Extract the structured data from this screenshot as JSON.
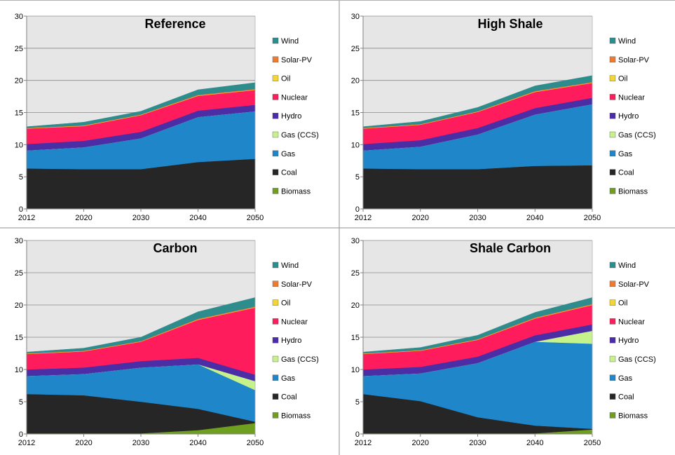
{
  "chart_data": [
    {
      "type": "area",
      "title": "Reference",
      "x": [
        "2012",
        "2020",
        "2030",
        "2040",
        "2050"
      ],
      "ylim": [
        0,
        30
      ],
      "yticks": [
        0,
        5,
        10,
        15,
        20,
        25,
        30
      ],
      "grid": true,
      "legend": "right",
      "stacked": true,
      "series": [
        {
          "name": "Biomass",
          "color": "#6E9F1E",
          "values": [
            0.1,
            0.1,
            0.1,
            0.1,
            0.1
          ]
        },
        {
          "name": "Coal",
          "color": "#262626",
          "values": [
            6.2,
            6.1,
            6.1,
            7.2,
            7.7
          ]
        },
        {
          "name": "Gas",
          "color": "#1F86C9",
          "values": [
            2.8,
            3.4,
            4.8,
            7.0,
            7.4
          ]
        },
        {
          "name": "Gas (CCS)",
          "color": "#C6F28C",
          "values": [
            0.0,
            0.0,
            0.0,
            0.0,
            0.0
          ]
        },
        {
          "name": "Hydro",
          "color": "#4B2DA6",
          "values": [
            1.0,
            1.0,
            1.0,
            1.0,
            1.0
          ]
        },
        {
          "name": "Nuclear",
          "color": "#FF1C5D",
          "values": [
            2.4,
            2.3,
            2.6,
            2.3,
            2.3
          ]
        },
        {
          "name": "Oil",
          "color": "#F2D633",
          "values": [
            0.05,
            0.05,
            0.05,
            0.05,
            0.05
          ]
        },
        {
          "name": "Solar-PV",
          "color": "#F5792A",
          "values": [
            0.05,
            0.05,
            0.05,
            0.1,
            0.1
          ]
        },
        {
          "name": "Wind",
          "color": "#2F8C8C",
          "values": [
            0.2,
            0.5,
            0.5,
            0.8,
            1.0
          ]
        }
      ]
    },
    {
      "type": "area",
      "title": "High Shale",
      "x": [
        "2012",
        "2020",
        "2030",
        "2040",
        "2050"
      ],
      "ylim": [
        0,
        30
      ],
      "yticks": [
        0,
        5,
        10,
        15,
        20,
        25,
        30
      ],
      "grid": true,
      "legend": "right",
      "stacked": true,
      "series": [
        {
          "name": "Biomass",
          "color": "#6E9F1E",
          "values": [
            0.1,
            0.1,
            0.1,
            0.1,
            0.1
          ]
        },
        {
          "name": "Coal",
          "color": "#262626",
          "values": [
            6.2,
            6.1,
            6.1,
            6.6,
            6.7
          ]
        },
        {
          "name": "Gas",
          "color": "#1F86C9",
          "values": [
            2.8,
            3.5,
            5.4,
            8.0,
            9.5
          ]
        },
        {
          "name": "Gas (CCS)",
          "color": "#C6F28C",
          "values": [
            0.0,
            0.0,
            0.0,
            0.0,
            0.0
          ]
        },
        {
          "name": "Hydro",
          "color": "#4B2DA6",
          "values": [
            1.0,
            1.0,
            1.0,
            1.0,
            1.0
          ]
        },
        {
          "name": "Nuclear",
          "color": "#FF1C5D",
          "values": [
            2.4,
            2.4,
            2.5,
            2.5,
            2.3
          ]
        },
        {
          "name": "Oil",
          "color": "#F2D633",
          "values": [
            0.05,
            0.05,
            0.05,
            0.05,
            0.05
          ]
        },
        {
          "name": "Solar-PV",
          "color": "#F5792A",
          "values": [
            0.05,
            0.05,
            0.05,
            0.1,
            0.1
          ]
        },
        {
          "name": "Wind",
          "color": "#2F8C8C",
          "values": [
            0.2,
            0.4,
            0.6,
            0.8,
            1.0
          ]
        }
      ]
    },
    {
      "type": "area",
      "title": "Carbon",
      "x": [
        "2012",
        "2020",
        "2030",
        "2040",
        "2050"
      ],
      "ylim": [
        0,
        30
      ],
      "yticks": [
        0,
        5,
        10,
        15,
        20,
        25,
        30
      ],
      "grid": true,
      "legend": "right",
      "stacked": true,
      "series": [
        {
          "name": "Biomass",
          "color": "#6E9F1E",
          "values": [
            0.1,
            0.1,
            0.1,
            0.6,
            1.7
          ]
        },
        {
          "name": "Coal",
          "color": "#262626",
          "values": [
            6.1,
            5.9,
            4.9,
            3.3,
            0.2
          ]
        },
        {
          "name": "Gas",
          "color": "#1F86C9",
          "values": [
            2.8,
            3.3,
            5.3,
            6.9,
            4.9
          ]
        },
        {
          "name": "Gas (CCS)",
          "color": "#C6F28C",
          "values": [
            0.0,
            0.0,
            0.0,
            0.0,
            1.4
          ]
        },
        {
          "name": "Hydro",
          "color": "#4B2DA6",
          "values": [
            1.0,
            1.0,
            1.0,
            1.0,
            1.0
          ]
        },
        {
          "name": "Nuclear",
          "color": "#FF1C5D",
          "values": [
            2.4,
            2.5,
            3.0,
            5.9,
            10.4
          ]
        },
        {
          "name": "Oil",
          "color": "#F2D633",
          "values": [
            0.05,
            0.05,
            0.05,
            0.05,
            0.05
          ]
        },
        {
          "name": "Solar-PV",
          "color": "#F5792A",
          "values": [
            0.05,
            0.05,
            0.05,
            0.1,
            0.1
          ]
        },
        {
          "name": "Wind",
          "color": "#2F8C8C",
          "values": [
            0.2,
            0.4,
            0.6,
            1.1,
            1.4
          ]
        }
      ]
    },
    {
      "type": "area",
      "title": "Shale Carbon",
      "x": [
        "2012",
        "2020",
        "2030",
        "2040",
        "2050"
      ],
      "ylim": [
        0,
        30
      ],
      "yticks": [
        0,
        5,
        10,
        15,
        20,
        25,
        30
      ],
      "grid": true,
      "legend": "right",
      "stacked": true,
      "series": [
        {
          "name": "Biomass",
          "color": "#6E9F1E",
          "values": [
            0.1,
            0.1,
            0.1,
            0.1,
            0.7
          ]
        },
        {
          "name": "Coal",
          "color": "#262626",
          "values": [
            6.1,
            5.0,
            2.5,
            1.2,
            0.1
          ]
        },
        {
          "name": "Gas",
          "color": "#1F86C9",
          "values": [
            2.8,
            4.3,
            8.4,
            13.0,
            13.2
          ]
        },
        {
          "name": "Gas (CCS)",
          "color": "#C6F28C",
          "values": [
            0.0,
            0.0,
            0.0,
            0.0,
            2.0
          ]
        },
        {
          "name": "Hydro",
          "color": "#4B2DA6",
          "values": [
            1.0,
            1.0,
            1.0,
            1.0,
            1.0
          ]
        },
        {
          "name": "Nuclear",
          "color": "#FF1C5D",
          "values": [
            2.4,
            2.5,
            2.6,
            2.6,
            3.0
          ]
        },
        {
          "name": "Oil",
          "color": "#F2D633",
          "values": [
            0.05,
            0.05,
            0.05,
            0.05,
            0.05
          ]
        },
        {
          "name": "Solar-PV",
          "color": "#F5792A",
          "values": [
            0.05,
            0.05,
            0.05,
            0.1,
            0.1
          ]
        },
        {
          "name": "Wind",
          "color": "#2F8C8C",
          "values": [
            0.2,
            0.4,
            0.6,
            0.8,
            1.0
          ]
        }
      ]
    }
  ]
}
